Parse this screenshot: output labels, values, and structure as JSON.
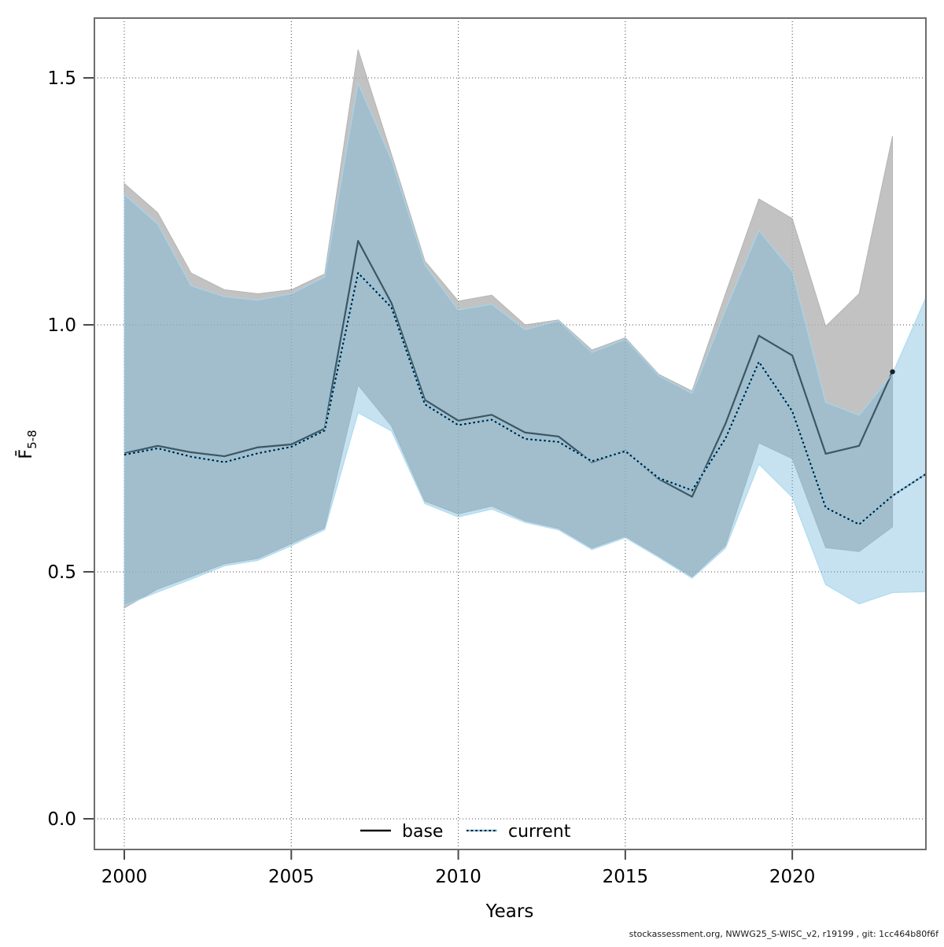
{
  "footer": {
    "credit": "stockassessment.org, NWWG25_S-WISC_v2, r19199 , git: 1cc464b80f6f"
  },
  "chart_data": {
    "type": "line",
    "title": "",
    "xlabel": "Years",
    "ylabel_main": "F̄",
    "ylabel_sub": "5-8",
    "x_domain": [
      1999.1,
      2024.0
    ],
    "y_domain": [
      -0.062,
      1.621
    ],
    "grid": "dotted",
    "x_ticks": [
      2000,
      2005,
      2010,
      2015,
      2020
    ],
    "x_tick_labels": [
      "2000",
      "2005",
      "2010",
      "2015",
      "2020"
    ],
    "y_ticks": [
      0.0,
      0.5,
      1.0,
      1.5
    ],
    "y_tick_labels": [
      "0.0",
      "0.5",
      "1.0",
      "1.5"
    ],
    "legend_position": "bottom-center-inside",
    "colors": {
      "base_band": "#c2c2c2",
      "base_band_edge": "#b5b5b5",
      "base_line": "#111111",
      "current_band_fill": "#77bbdd",
      "current_band_alpha": 0.42,
      "current_band_edge": "#a6d8f0",
      "current_line_under": "#85c7ea",
      "current_line_dash": "#101010",
      "grid_color": "#4a4a4a",
      "frame_color": "#6e6e6e"
    },
    "series": [
      {
        "name": "base",
        "style": "solid",
        "years": [
          2000,
          2001,
          2002,
          2003,
          2004,
          2005,
          2006,
          2007,
          2008,
          2009,
          2010,
          2011,
          2012,
          2013,
          2014,
          2015,
          2016,
          2017,
          2018,
          2019,
          2020,
          2021,
          2022,
          2023
        ],
        "values": [
          0.74,
          0.755,
          0.742,
          0.734,
          0.752,
          0.758,
          0.79,
          1.17,
          1.044,
          0.848,
          0.806,
          0.818,
          0.782,
          0.774,
          0.722,
          0.745,
          0.688,
          0.652,
          0.8,
          0.978,
          0.938,
          0.739,
          0.755,
          0.905
        ],
        "ci_upper": [
          1.286,
          1.227,
          1.105,
          1.071,
          1.063,
          1.071,
          1.103,
          1.557,
          1.345,
          1.129,
          1.048,
          1.06,
          1.0,
          1.01,
          0.949,
          0.974,
          0.9,
          0.866,
          1.063,
          1.255,
          1.215,
          0.997,
          1.063,
          1.382
        ],
        "ci_lower": [
          0.427,
          0.465,
          0.49,
          0.516,
          0.527,
          0.557,
          0.589,
          0.878,
          0.795,
          0.643,
          0.617,
          0.633,
          0.603,
          0.588,
          0.548,
          0.572,
          0.532,
          0.49,
          0.553,
          0.761,
          0.729,
          0.549,
          0.541,
          0.591
        ],
        "end_dot_year": 2023,
        "end_dot_value": 0.905
      },
      {
        "name": "current",
        "style": "dotted",
        "years": [
          2000,
          2001,
          2002,
          2003,
          2004,
          2005,
          2006,
          2007,
          2008,
          2009,
          2010,
          2011,
          2012,
          2013,
          2014,
          2015,
          2016,
          2017,
          2018,
          2019,
          2020,
          2021,
          2022,
          2023,
          2024
        ],
        "values": [
          0.737,
          0.75,
          0.733,
          0.722,
          0.74,
          0.753,
          0.786,
          1.105,
          1.035,
          0.839,
          0.797,
          0.808,
          0.769,
          0.763,
          0.724,
          0.744,
          0.69,
          0.665,
          0.77,
          0.925,
          0.825,
          0.63,
          0.596,
          0.654,
          0.698
        ],
        "ci_upper": [
          1.264,
          1.204,
          1.079,
          1.057,
          1.05,
          1.063,
          1.097,
          1.489,
          1.334,
          1.121,
          1.03,
          1.042,
          0.99,
          1.008,
          0.944,
          0.971,
          0.897,
          0.861,
          1.03,
          1.191,
          1.108,
          0.843,
          0.817,
          0.901,
          1.055
        ],
        "ci_lower": [
          0.432,
          0.459,
          0.485,
          0.512,
          0.523,
          0.553,
          0.585,
          0.822,
          0.785,
          0.638,
          0.611,
          0.627,
          0.6,
          0.585,
          0.545,
          0.569,
          0.529,
          0.487,
          0.548,
          0.718,
          0.651,
          0.474,
          0.435,
          0.458,
          0.46
        ]
      }
    ],
    "legend": [
      {
        "label": "base"
      },
      {
        "label": "current"
      }
    ]
  }
}
